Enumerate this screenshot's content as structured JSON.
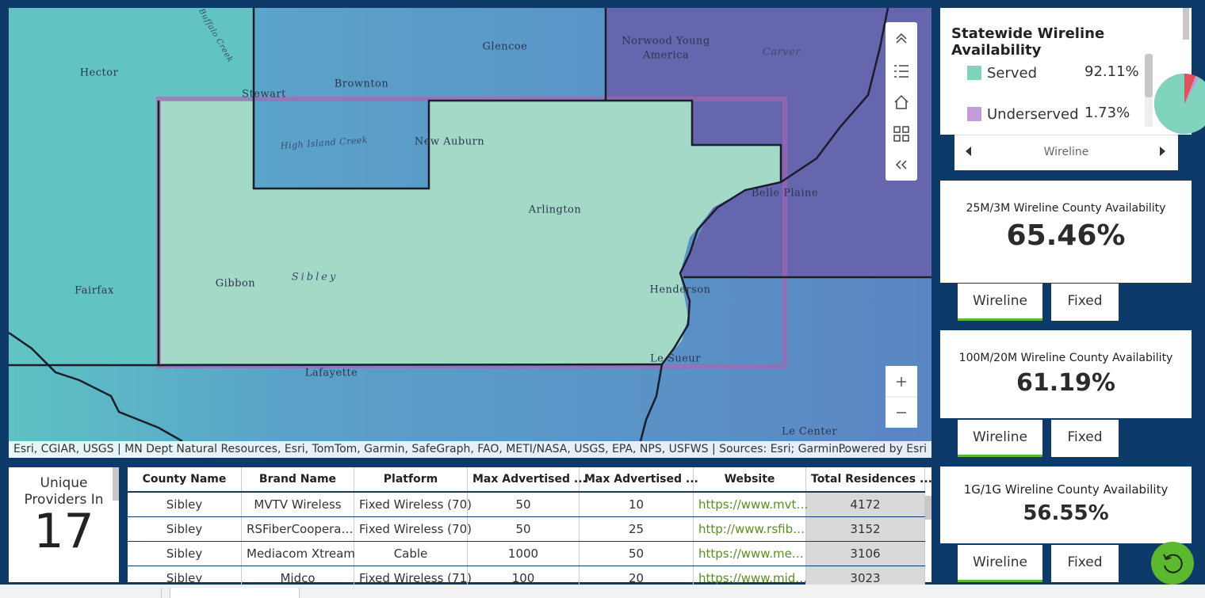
{
  "map": {
    "labels": [
      "Hector",
      "Stewart",
      "Brownton",
      "Glencoe",
      "Norwood Young",
      "America",
      "Carver",
      "High Island Creek",
      "New Auburn",
      "Arlington",
      "Gibbon",
      "Sibley",
      "Fairfax",
      "Belle Plaine",
      "Henderson",
      "Le Sueur",
      "Lafayette",
      "Le Center",
      "Buffalo Creek"
    ],
    "attribution": "Esri, CGIAR, USGS | MN Dept Natural Resources, Esri, TomTom, Garmin, SafeGraph, FAO, METI/NASA, USGS, EPA, NPS, USFWS | Sources: Esri; Garmin…",
    "powered_by": "Powered by Esri"
  },
  "statewide": {
    "title": "Statewide Wireline Availability",
    "labels": [
      "Served",
      "Underserved"
    ],
    "values": [
      92.11,
      1.73
    ],
    "value_labels": [
      "92.11%",
      "1.73%"
    ],
    "colors": [
      "#80d4bd",
      "#c59ad8"
    ],
    "nav": "Wireline"
  },
  "cards": [
    {
      "title": "25M/3M Wireline County Availability",
      "value": "65.46%",
      "tabs": [
        "Wireline",
        "Fixed"
      ]
    },
    {
      "title": "100M/20M Wireline County Availability",
      "value": "61.19%",
      "tabs": [
        "Wireline",
        "Fixed"
      ]
    },
    {
      "title": "1G/1G Wireline County Availability",
      "value": "56.55%",
      "tabs": [
        "Wireline",
        "Fixed"
      ]
    }
  ],
  "providers": {
    "title": "Unique Providers In",
    "count": "17"
  },
  "table": {
    "columns": [
      "County Name",
      "Brand Name",
      "Platform",
      "Max Advertised ...",
      "Max Advertised ...",
      "Website",
      "Total Residences ..."
    ],
    "rows": [
      [
        "Sibley",
        "MVTV Wireless",
        "Fixed Wireless (70)",
        50,
        10,
        "https://www.mvt…",
        4172
      ],
      [
        "Sibley",
        "RSFiberCoopera…",
        "Fixed Wireless (70)",
        50,
        25,
        "http://www.rsfib…",
        3152
      ],
      [
        "Sibley",
        "Mediacom Xtream",
        "Cable",
        1000,
        50,
        "https://www.me…",
        3106
      ],
      [
        "Sibley",
        "Midco",
        "Fixed Wireless (71)",
        100,
        20,
        "https://www.mid…",
        3023
      ]
    ]
  }
}
